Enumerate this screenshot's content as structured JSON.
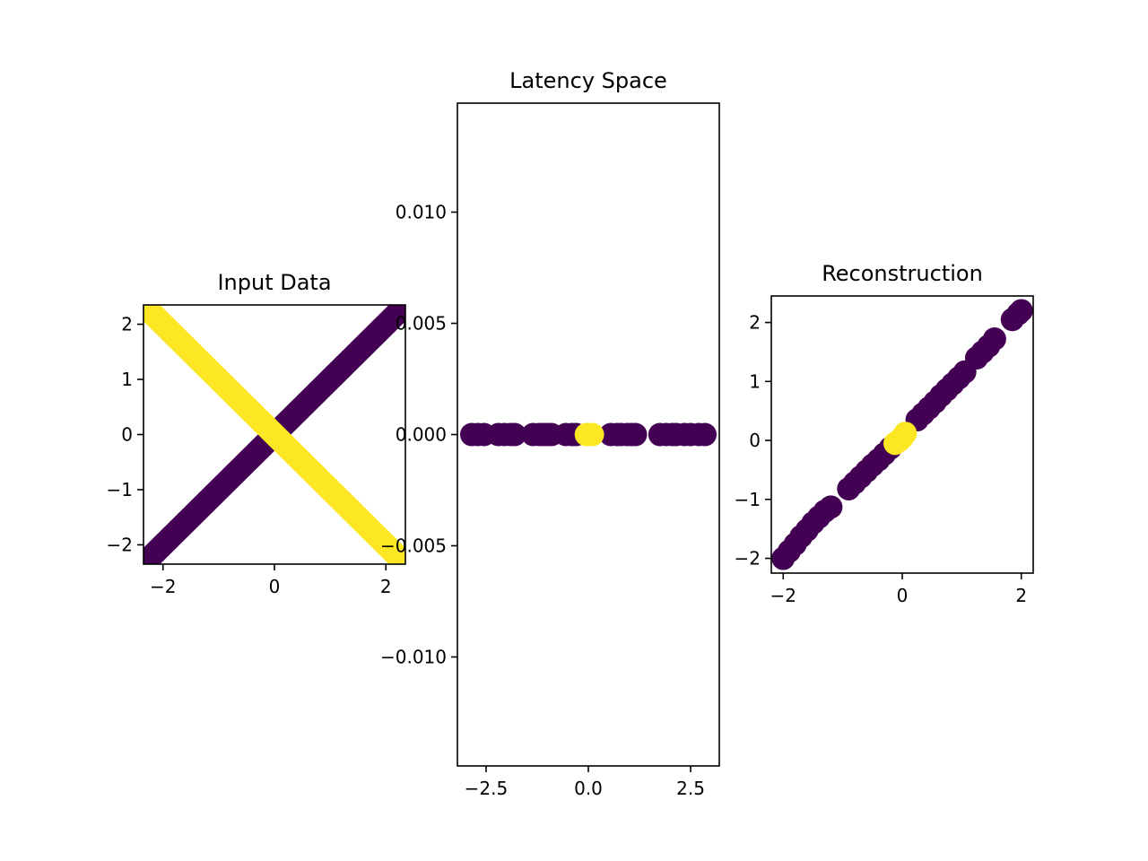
{
  "chart_data": [
    {
      "type": "scatter",
      "title": "Input Data",
      "xlabel": "",
      "ylabel": "",
      "xlim": [
        -2.35,
        2.35
      ],
      "ylim": [
        -2.35,
        2.35
      ],
      "xticks": [
        {
          "v": -2,
          "label": "−2"
        },
        {
          "v": 0,
          "label": "0"
        },
        {
          "v": 2,
          "label": "2"
        }
      ],
      "yticks": [
        {
          "v": -2,
          "label": "−2"
        },
        {
          "v": -1,
          "label": "−1"
        },
        {
          "v": 0,
          "label": "0"
        },
        {
          "v": 1,
          "label": "1"
        },
        {
          "v": 2,
          "label": "2"
        }
      ],
      "grid": false,
      "series": [
        {
          "color": "#440154",
          "points": {
            "line": {
              "from": [
                -2.2,
                -2.2
              ],
              "to": [
                2.2,
                2.2
              ],
              "count": 140
            }
          }
        },
        {
          "color": "#fde725",
          "points": {
            "line": {
              "from": [
                -2.2,
                2.2
              ],
              "to": [
                2.2,
                -2.2
              ],
              "count": 140
            }
          }
        }
      ]
    },
    {
      "type": "scatter",
      "title": "Latency Space",
      "xlabel": "",
      "ylabel": "",
      "xlim": [
        -3.2,
        3.2
      ],
      "ylim": [
        -0.0149,
        0.0149
      ],
      "xticks": [
        {
          "v": -2.5,
          "label": "−2.5"
        },
        {
          "v": 0,
          "label": "0.0"
        },
        {
          "v": 2.5,
          "label": "2.5"
        }
      ],
      "yticks": [
        {
          "v": -0.01,
          "label": "−0.010"
        },
        {
          "v": -0.005,
          "label": "−0.005"
        },
        {
          "v": 0,
          "label": "0.000"
        },
        {
          "v": 0.005,
          "label": "0.005"
        },
        {
          "v": 0.01,
          "label": "0.010"
        }
      ],
      "grid": false,
      "series": [
        {
          "color": "#440154",
          "x": [
            -2.85,
            -2.7,
            -2.55,
            -2.2,
            -2.05,
            -1.9,
            -1.8,
            -1.35,
            -1.2,
            -1.1,
            -1.0,
            -0.9,
            -0.55,
            -0.4,
            -0.3,
            0.55,
            0.7,
            0.8,
            0.95,
            1.05,
            1.15,
            1.75,
            1.9,
            2.05,
            2.15,
            2.35,
            2.5,
            2.7,
            2.85
          ],
          "y": 0
        },
        {
          "color": "#fde725",
          "x": [
            -0.05,
            0.0,
            0.1
          ],
          "y": 0
        }
      ]
    },
    {
      "type": "scatter",
      "title": "Reconstruction",
      "xlabel": "",
      "ylabel": "",
      "xlim": [
        -2.2,
        2.2
      ],
      "ylim": [
        -2.25,
        2.45
      ],
      "xticks": [
        {
          "v": -2,
          "label": "−2"
        },
        {
          "v": 0,
          "label": "0"
        },
        {
          "v": 2,
          "label": "2"
        }
      ],
      "yticks": [
        {
          "v": -2,
          "label": "−2"
        },
        {
          "v": -1,
          "label": "−1"
        },
        {
          "v": 0,
          "label": "0"
        },
        {
          "v": 1,
          "label": "1"
        },
        {
          "v": 2,
          "label": "2"
        }
      ],
      "grid": false,
      "series": [
        {
          "color": "#440154",
          "x": [
            -2.0,
            -1.9,
            -1.8,
            -1.7,
            -1.6,
            -1.5,
            -1.4,
            -1.3,
            -1.2,
            -0.9,
            -0.8,
            -0.7,
            -0.6,
            -0.5,
            -0.4,
            -0.3,
            -0.2,
            0.25,
            0.35,
            0.45,
            0.55,
            0.65,
            0.75,
            0.85,
            0.95,
            1.05,
            1.25,
            1.35,
            1.45,
            1.55,
            1.85,
            1.95,
            2.0
          ],
          "y": [
            -2.0,
            -1.88,
            -1.76,
            -1.63,
            -1.52,
            -1.4,
            -1.3,
            -1.2,
            -1.13,
            -0.82,
            -0.72,
            -0.62,
            -0.52,
            -0.42,
            -0.33,
            -0.23,
            -0.13,
            0.35,
            0.45,
            0.55,
            0.65,
            0.76,
            0.86,
            0.96,
            1.06,
            1.16,
            1.4,
            1.5,
            1.6,
            1.72,
            2.05,
            2.15,
            2.2
          ]
        },
        {
          "color": "#fde725",
          "x": [
            -0.12,
            -0.05,
            0.0,
            0.05
          ],
          "y": [
            -0.05,
            0.0,
            0.05,
            0.12
          ]
        }
      ]
    }
  ]
}
